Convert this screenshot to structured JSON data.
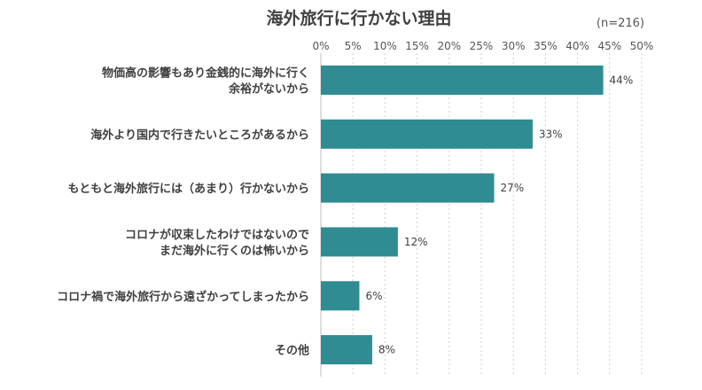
{
  "chart_data": {
    "type": "bar",
    "orientation": "horizontal",
    "title": "海外旅行に行かない理由",
    "note": "(n=216)",
    "xlabel": "",
    "ylabel": "",
    "xlim": [
      0,
      50
    ],
    "x_ticks": [
      "0%",
      "5%",
      "10%",
      "15%",
      "20%",
      "25%",
      "30%",
      "35%",
      "40%",
      "45%",
      "50%"
    ],
    "grid": "vertical dotted",
    "bar_color": "#2E8C92",
    "categories": [
      [
        "物価高の影響もあり金銭的に海外に行く",
        "余裕がないから"
      ],
      [
        "海外より国内で行きたいところがあるから"
      ],
      [
        "もともと海外旅行には（あまり）行かないから"
      ],
      [
        "コロナが収束したわけではないので",
        "まだ海外に行くのは怖いから"
      ],
      [
        "コロナ禍で海外旅行から遠ざかってしまったから"
      ],
      [
        "その他"
      ]
    ],
    "values": [
      44,
      33,
      27,
      12,
      6,
      8
    ],
    "data_labels": [
      "44%",
      "33%",
      "27%",
      "12%",
      "6%",
      "8%"
    ]
  }
}
